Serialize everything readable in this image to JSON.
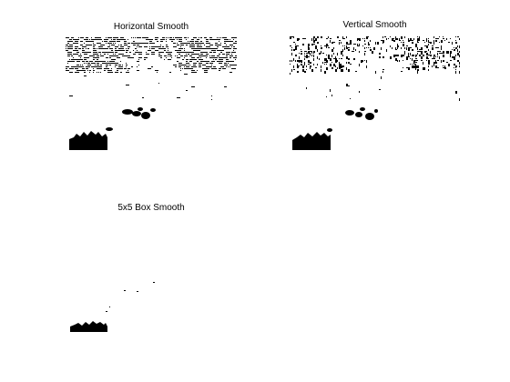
{
  "figure": {
    "background": "#ffffff",
    "ink": "#000000",
    "panels": [
      {
        "title": "Horizontal Smooth"
      },
      {
        "title": "Vertical Smooth"
      },
      {
        "title": "5x5 Box Smooth"
      }
    ]
  }
}
